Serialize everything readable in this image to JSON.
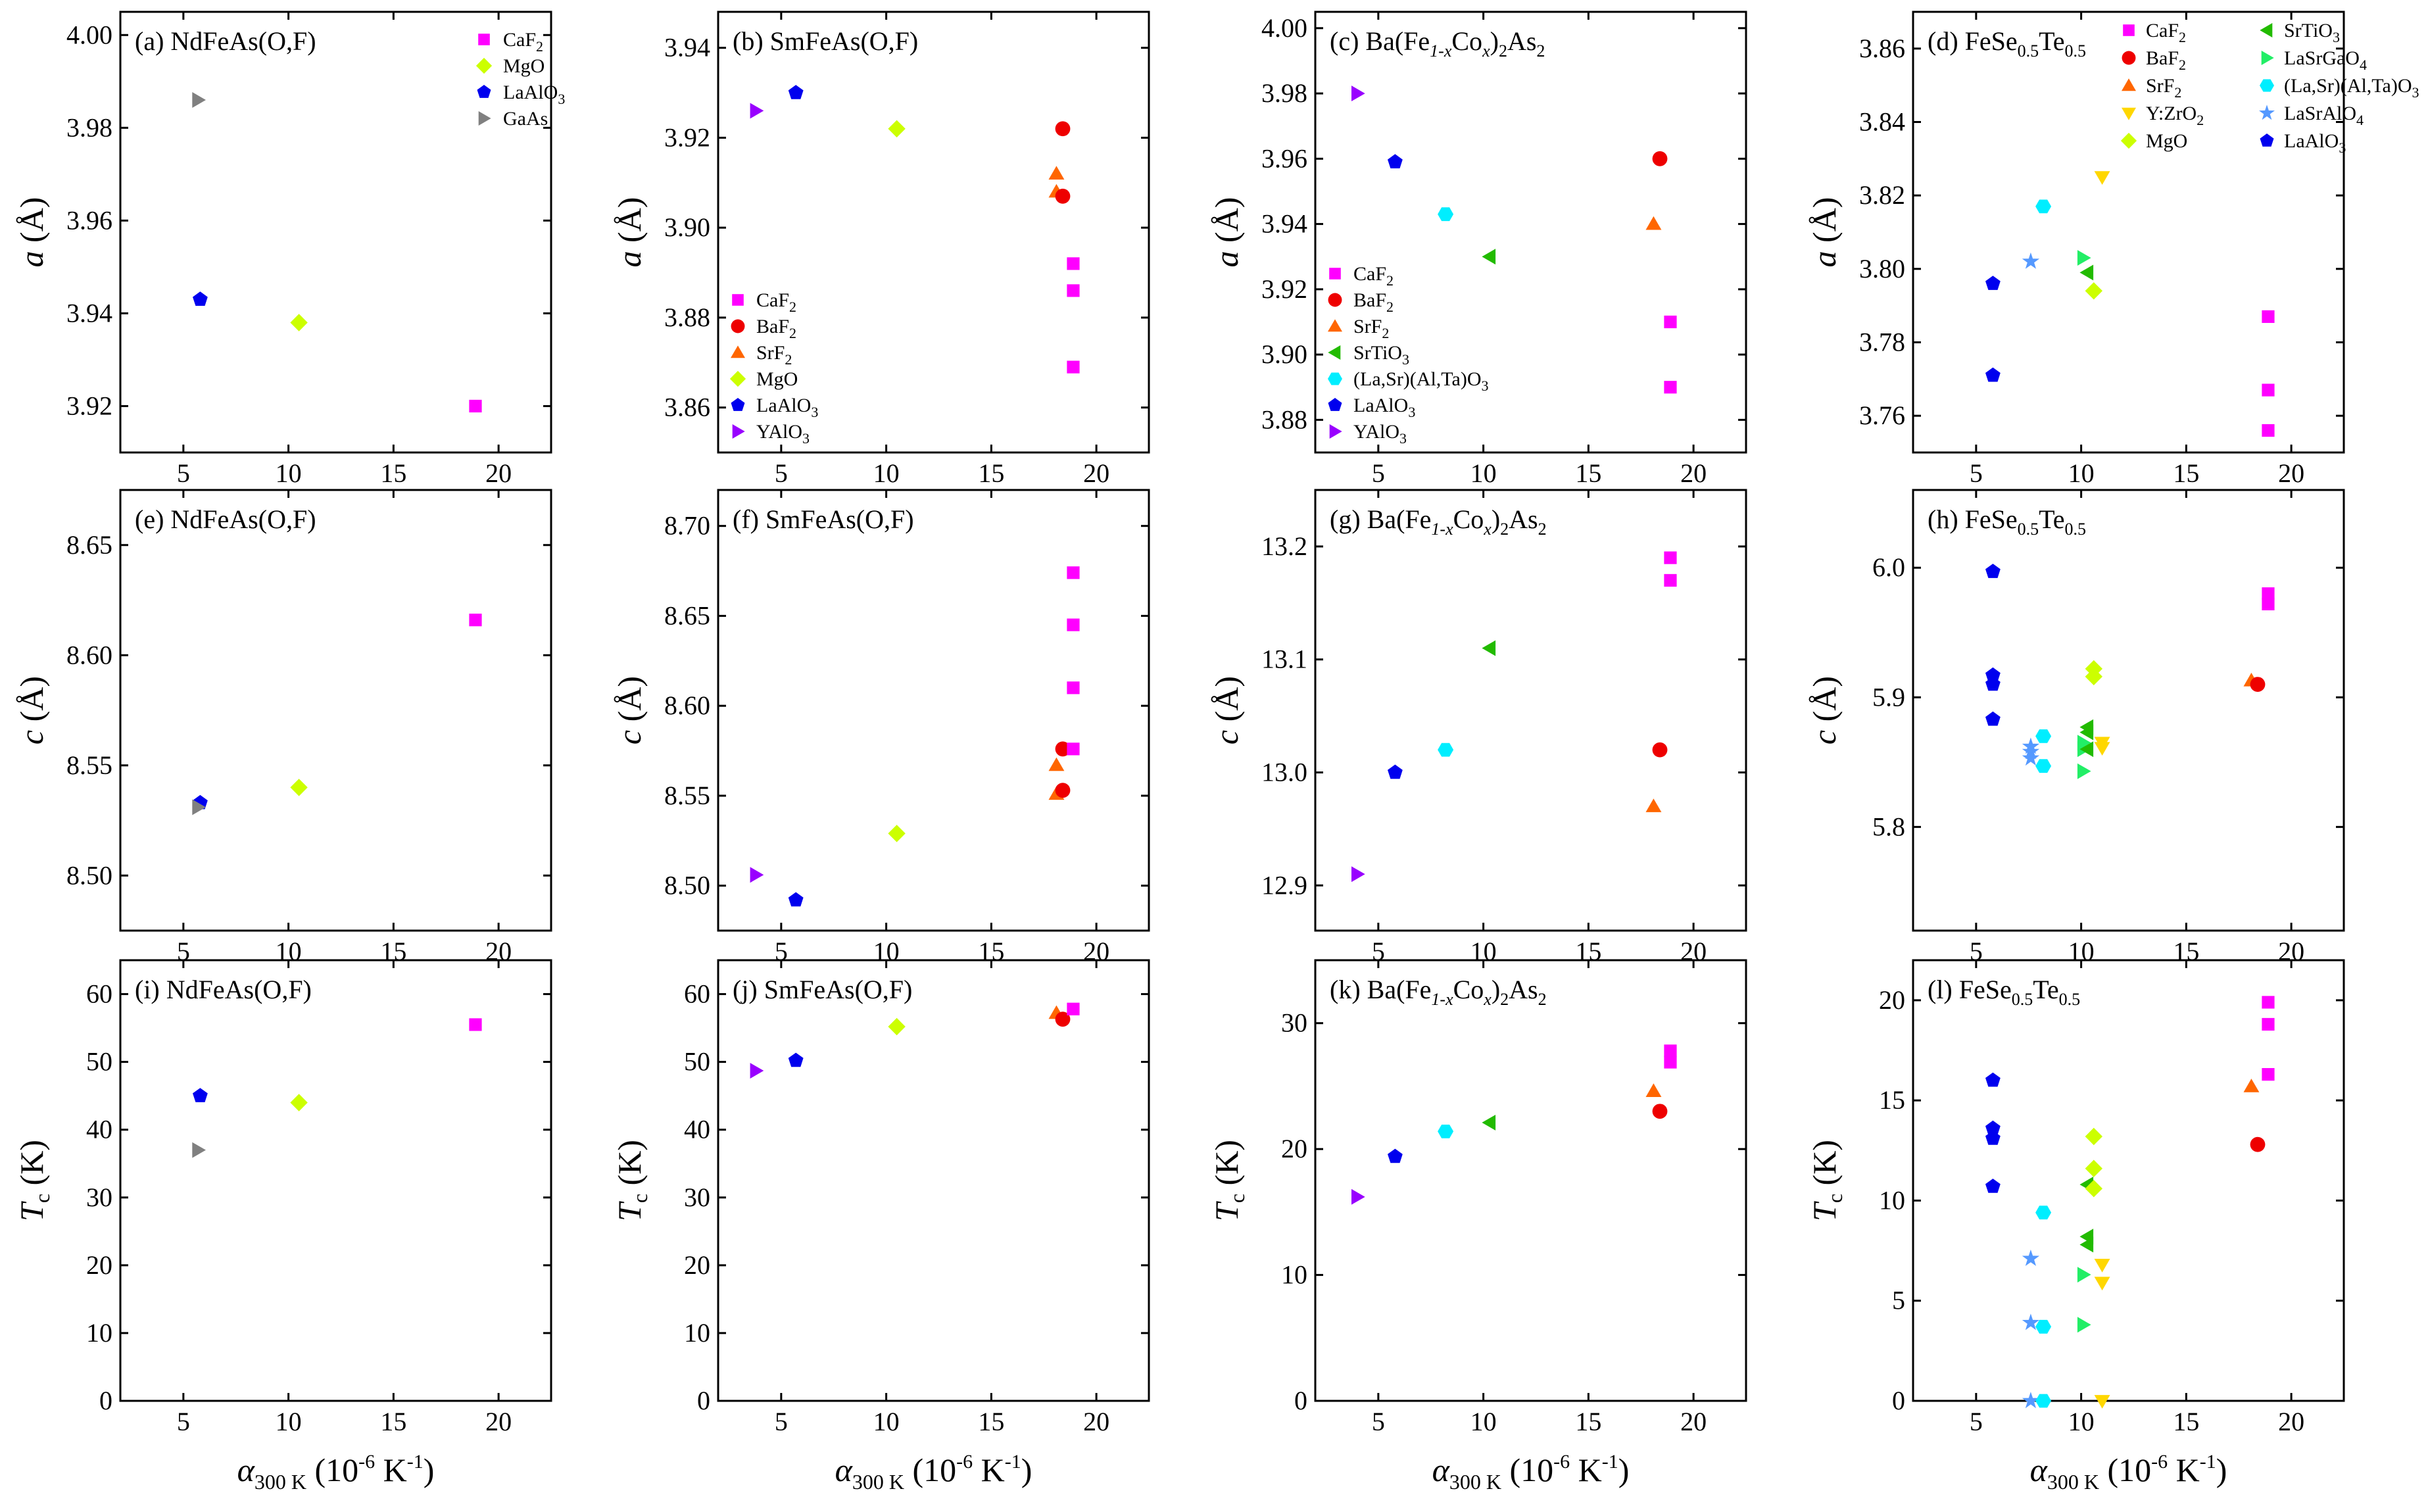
{
  "figure": {
    "xlabel": {
      "symbol": "α",
      "subscript": "300 K",
      "units": " (10",
      "exp": "-6",
      "units2": " K",
      "exp2": "-1",
      "close": ")"
    }
  },
  "colors": {
    "CaF2": "#ff00ff",
    "BaF2": "#ee0000",
    "SrF2": "#ff6600",
    "MgO": "#ccff00",
    "LaAlO3": "#0000ee",
    "GaAs": "#808080",
    "YAlO3": "#9900ff",
    "SrTiO3": "#22bb00",
    "LSAT": "#00eeff",
    "LaSrGaO4": "#22ee66",
    "YZrO2": "#ffd700",
    "LaSrAlO4": "#5599ff"
  },
  "legend_labels": {
    "CaF2": [
      "CaF",
      "2",
      ""
    ],
    "BaF2": [
      "BaF",
      "2",
      ""
    ],
    "SrF2": [
      "SrF",
      "2",
      ""
    ],
    "MgO": [
      "MgO",
      "",
      ""
    ],
    "LaAlO3": [
      "LaAlO",
      "3",
      ""
    ],
    "GaAs": [
      "GaAs",
      "",
      ""
    ],
    "YAlO3": [
      "YAlO",
      "3",
      ""
    ],
    "SrTiO3": [
      "SrTiO",
      "3",
      ""
    ],
    "LSAT": [
      "(La,Sr)(Al,Ta)O",
      "3",
      ""
    ],
    "LaSrGaO4": [
      "LaSrGaO",
      "4",
      ""
    ],
    "YZrO2": [
      "Y:ZrO",
      "2",
      ""
    ],
    "LaSrAlO4": [
      "LaSrAlO",
      "4",
      ""
    ]
  },
  "chart_data": [
    {
      "type": "scatter",
      "panel": "(a)",
      "material": [
        "NdFeAs(O,F)"
      ],
      "ylabel": {
        "sym": "a",
        "sub": "",
        "unit": " (Å)"
      },
      "xlim": [
        2,
        22.5
      ],
      "ylim": [
        3.91,
        4.005
      ],
      "xticks": [
        5,
        10,
        15,
        20
      ],
      "yticks": [
        3.92,
        3.94,
        3.96,
        3.98,
        4.0
      ],
      "ydec": 2,
      "legend": {
        "position": "top-right",
        "entries": [
          "CaF2",
          "MgO",
          "LaAlO3",
          "GaAs"
        ]
      },
      "points": [
        {
          "s": "CaF2",
          "x": 18.9,
          "y": 3.92
        },
        {
          "s": "MgO",
          "x": 10.5,
          "y": 3.938
        },
        {
          "s": "LaAlO3",
          "x": 5.8,
          "y": 3.943
        },
        {
          "s": "GaAs",
          "x": 5.7,
          "y": 3.986
        }
      ]
    },
    {
      "type": "scatter",
      "panel": "(b)",
      "material": [
        "SmFeAs(O,F)"
      ],
      "ylabel": {
        "sym": "a",
        "sub": "",
        "unit": " (Å)"
      },
      "xlim": [
        2,
        22.5
      ],
      "ylim": [
        3.85,
        3.948
      ],
      "xticks": [
        5,
        10,
        15,
        20
      ],
      "yticks": [
        3.86,
        3.88,
        3.9,
        3.92,
        3.94
      ],
      "ydec": 2,
      "legend": {
        "position": "bottom-left",
        "entries": [
          "CaF2",
          "BaF2",
          "SrF2",
          "MgO",
          "LaAlO3",
          "YAlO3"
        ]
      },
      "points": [
        {
          "s": "YAlO3",
          "x": 3.8,
          "y": 3.926
        },
        {
          "s": "LaAlO3",
          "x": 5.7,
          "y": 3.93
        },
        {
          "s": "MgO",
          "x": 10.5,
          "y": 3.922
        },
        {
          "s": "BaF2",
          "x": 18.4,
          "y": 3.922
        },
        {
          "s": "SrF2",
          "x": 18.1,
          "y": 3.912
        },
        {
          "s": "SrF2",
          "x": 18.1,
          "y": 3.908
        },
        {
          "s": "BaF2",
          "x": 18.4,
          "y": 3.907
        },
        {
          "s": "CaF2",
          "x": 18.9,
          "y": 3.892
        },
        {
          "s": "CaF2",
          "x": 18.9,
          "y": 3.886
        },
        {
          "s": "CaF2",
          "x": 18.9,
          "y": 3.869
        }
      ]
    },
    {
      "type": "scatter",
      "panel": "(c)",
      "material": [
        "Ba(Fe",
        "1-x",
        "Co",
        "x",
        ")",
        "2",
        "As",
        "2"
      ],
      "ylabel": {
        "sym": "a",
        "sub": "",
        "unit": " (Å)"
      },
      "xlim": [
        2,
        22.5
      ],
      "ylim": [
        3.87,
        4.005
      ],
      "xticks": [
        5,
        10,
        15,
        20
      ],
      "yticks": [
        3.88,
        3.9,
        3.92,
        3.94,
        3.96,
        3.98,
        4.0
      ],
      "ydec": 2,
      "legend": {
        "position": "bottom-left",
        "entries": [
          "CaF2",
          "BaF2",
          "SrF2",
          "SrTiO3",
          "LSAT",
          "LaAlO3",
          "YAlO3"
        ]
      },
      "points": [
        {
          "s": "YAlO3",
          "x": 4.0,
          "y": 3.98
        },
        {
          "s": "LaAlO3",
          "x": 5.8,
          "y": 3.959
        },
        {
          "s": "LSAT",
          "x": 8.2,
          "y": 3.943
        },
        {
          "s": "SrTiO3",
          "x": 10.3,
          "y": 3.93
        },
        {
          "s": "SrF2",
          "x": 18.1,
          "y": 3.94
        },
        {
          "s": "BaF2",
          "x": 18.4,
          "y": 3.96
        },
        {
          "s": "CaF2",
          "x": 18.9,
          "y": 3.91
        },
        {
          "s": "CaF2",
          "x": 18.9,
          "y": 3.89
        }
      ]
    },
    {
      "type": "scatter",
      "panel": "(d)",
      "material": [
        "FeSe",
        "0.5",
        "Te",
        "0.5"
      ],
      "ylabel": {
        "sym": "a",
        "sub": "",
        "unit": " (Å)"
      },
      "xlim": [
        2,
        22.5
      ],
      "ylim": [
        3.75,
        3.87
      ],
      "xticks": [
        5,
        10,
        15,
        20
      ],
      "yticks": [
        3.76,
        3.78,
        3.8,
        3.82,
        3.84,
        3.86
      ],
      "ydec": 2,
      "legend": {
        "position": "top",
        "entries": [
          "CaF2",
          "SrTiO3",
          "BaF2",
          "LaSrGaO4",
          "SrF2",
          "LSAT",
          "YZrO2",
          "LaSrAlO4",
          "MgO",
          "LaAlO3"
        ]
      },
      "points": [
        {
          "s": "LaAlO3",
          "x": 5.8,
          "y": 3.796
        },
        {
          "s": "LaAlO3",
          "x": 5.8,
          "y": 3.771
        },
        {
          "s": "LaSrAlO4",
          "x": 7.6,
          "y": 3.802
        },
        {
          "s": "LSAT",
          "x": 8.2,
          "y": 3.817
        },
        {
          "s": "LaSrGaO4",
          "x": 10.1,
          "y": 3.803
        },
        {
          "s": "SrTiO3",
          "x": 10.3,
          "y": 3.799
        },
        {
          "s": "MgO",
          "x": 10.6,
          "y": 3.794
        },
        {
          "s": "YZrO2",
          "x": 11.0,
          "y": 3.825
        },
        {
          "s": "CaF2",
          "x": 18.9,
          "y": 3.787
        },
        {
          "s": "CaF2",
          "x": 18.9,
          "y": 3.767
        },
        {
          "s": "CaF2",
          "x": 18.9,
          "y": 3.756
        }
      ]
    },
    {
      "type": "scatter",
      "panel": "(e)",
      "material": [
        "NdFeAs(O,F)"
      ],
      "ylabel": {
        "sym": "c",
        "sub": "",
        "unit": " (Å)"
      },
      "xlim": [
        2,
        22.5
      ],
      "ylim": [
        8.475,
        8.675
      ],
      "xticks": [
        5,
        10,
        15,
        20
      ],
      "yticks": [
        8.5,
        8.55,
        8.6,
        8.65
      ],
      "ydec": 2,
      "legend": null,
      "points": [
        {
          "s": "CaF2",
          "x": 18.9,
          "y": 8.616
        },
        {
          "s": "MgO",
          "x": 10.5,
          "y": 8.54
        },
        {
          "s": "LaAlO3",
          "x": 5.8,
          "y": 8.533
        },
        {
          "s": "GaAs",
          "x": 5.7,
          "y": 8.531
        }
      ]
    },
    {
      "type": "scatter",
      "panel": "(f)",
      "material": [
        "SmFeAs(O,F)"
      ],
      "ylabel": {
        "sym": "c",
        "sub": "",
        "unit": " (Å)"
      },
      "xlim": [
        2,
        22.5
      ],
      "ylim": [
        8.475,
        8.72
      ],
      "xticks": [
        5,
        10,
        15,
        20
      ],
      "yticks": [
        8.5,
        8.55,
        8.6,
        8.65,
        8.7
      ],
      "ydec": 2,
      "legend": null,
      "points": [
        {
          "s": "YAlO3",
          "x": 3.8,
          "y": 8.506
        },
        {
          "s": "LaAlO3",
          "x": 5.7,
          "y": 8.492
        },
        {
          "s": "MgO",
          "x": 10.5,
          "y": 8.529
        },
        {
          "s": "SrF2",
          "x": 18.1,
          "y": 8.567
        },
        {
          "s": "SrF2",
          "x": 18.1,
          "y": 8.551
        },
        {
          "s": "BaF2",
          "x": 18.4,
          "y": 8.576
        },
        {
          "s": "BaF2",
          "x": 18.4,
          "y": 8.553
        },
        {
          "s": "CaF2",
          "x": 18.9,
          "y": 8.674
        },
        {
          "s": "CaF2",
          "x": 18.9,
          "y": 8.645
        },
        {
          "s": "CaF2",
          "x": 18.9,
          "y": 8.61
        },
        {
          "s": "CaF2",
          "x": 18.9,
          "y": 8.576
        }
      ]
    },
    {
      "type": "scatter",
      "panel": "(g)",
      "material": [
        "Ba(Fe",
        "1-x",
        "Co",
        "x",
        ")",
        "2",
        "As",
        "2"
      ],
      "ylabel": {
        "sym": "c",
        "sub": "",
        "unit": " (Å)"
      },
      "xlim": [
        2,
        22.5
      ],
      "ylim": [
        12.86,
        13.25
      ],
      "xticks": [
        5,
        10,
        15,
        20
      ],
      "yticks": [
        12.9,
        13.0,
        13.1,
        13.2
      ],
      "ydec": 1,
      "legend": null,
      "points": [
        {
          "s": "YAlO3",
          "x": 4.0,
          "y": 12.91
        },
        {
          "s": "LaAlO3",
          "x": 5.8,
          "y": 13.0
        },
        {
          "s": "LSAT",
          "x": 8.2,
          "y": 13.02
        },
        {
          "s": "SrTiO3",
          "x": 10.3,
          "y": 13.11
        },
        {
          "s": "SrF2",
          "x": 18.1,
          "y": 12.97
        },
        {
          "s": "BaF2",
          "x": 18.4,
          "y": 13.02
        },
        {
          "s": "CaF2",
          "x": 18.9,
          "y": 13.19
        },
        {
          "s": "CaF2",
          "x": 18.9,
          "y": 13.17
        }
      ]
    },
    {
      "type": "scatter",
      "panel": "(h)",
      "material": [
        "FeSe",
        "0.5",
        "Te",
        "0.5"
      ],
      "ylabel": {
        "sym": "c",
        "sub": "",
        "unit": " (Å)"
      },
      "xlim": [
        2,
        22.5
      ],
      "ylim": [
        5.72,
        6.06
      ],
      "xticks": [
        5,
        10,
        15,
        20
      ],
      "yticks": [
        5.8,
        5.9,
        6.0
      ],
      "ydec": 1,
      "legend": null,
      "points": [
        {
          "s": "LaAlO3",
          "x": 5.8,
          "y": 5.997
        },
        {
          "s": "LaAlO3",
          "x": 5.8,
          "y": 5.917
        },
        {
          "s": "LaAlO3",
          "x": 5.8,
          "y": 5.91
        },
        {
          "s": "LaAlO3",
          "x": 5.8,
          "y": 5.883
        },
        {
          "s": "LaSrAlO4",
          "x": 7.6,
          "y": 5.862
        },
        {
          "s": "LaSrAlO4",
          "x": 7.6,
          "y": 5.858
        },
        {
          "s": "LaSrAlO4",
          "x": 7.6,
          "y": 5.853
        },
        {
          "s": "LSAT",
          "x": 8.2,
          "y": 5.87
        },
        {
          "s": "LSAT",
          "x": 8.2,
          "y": 5.847
        },
        {
          "s": "LaSrGaO4",
          "x": 10.1,
          "y": 5.865
        },
        {
          "s": "LaSrGaO4",
          "x": 10.1,
          "y": 5.86
        },
        {
          "s": "LaSrGaO4",
          "x": 10.1,
          "y": 5.843
        },
        {
          "s": "SrTiO3",
          "x": 10.3,
          "y": 5.877
        },
        {
          "s": "SrTiO3",
          "x": 10.3,
          "y": 5.873
        },
        {
          "s": "SrTiO3",
          "x": 10.3,
          "y": 5.86
        },
        {
          "s": "MgO",
          "x": 10.6,
          "y": 5.922
        },
        {
          "s": "MgO",
          "x": 10.6,
          "y": 5.916
        },
        {
          "s": "YZrO2",
          "x": 11.0,
          "y": 5.865
        },
        {
          "s": "YZrO2",
          "x": 11.0,
          "y": 5.861
        },
        {
          "s": "SrF2",
          "x": 18.1,
          "y": 5.913
        },
        {
          "s": "BaF2",
          "x": 18.4,
          "y": 5.91
        },
        {
          "s": "CaF2",
          "x": 18.9,
          "y": 5.98
        },
        {
          "s": "CaF2",
          "x": 18.9,
          "y": 5.972
        }
      ]
    },
    {
      "type": "scatter",
      "panel": "(i)",
      "material": [
        "NdFeAs(O,F)"
      ],
      "ylabel": {
        "sym": "T",
        "sub": "c",
        "unit": " (K)"
      },
      "xlim": [
        2,
        22.5
      ],
      "ylim": [
        0,
        65
      ],
      "xticks": [
        5,
        10,
        15,
        20
      ],
      "yticks": [
        0,
        10,
        20,
        30,
        40,
        50,
        60
      ],
      "ydec": 0,
      "legend": null,
      "points": [
        {
          "s": "CaF2",
          "x": 18.9,
          "y": 55.5
        },
        {
          "s": "MgO",
          "x": 10.5,
          "y": 44
        },
        {
          "s": "LaAlO3",
          "x": 5.8,
          "y": 45
        },
        {
          "s": "GaAs",
          "x": 5.7,
          "y": 37
        }
      ]
    },
    {
      "type": "scatter",
      "panel": "(j)",
      "material": [
        "SmFeAs(O,F)"
      ],
      "ylabel": {
        "sym": "T",
        "sub": "c",
        "unit": " (K)"
      },
      "xlim": [
        2,
        22.5
      ],
      "ylim": [
        0,
        65
      ],
      "xticks": [
        5,
        10,
        15,
        20
      ],
      "yticks": [
        0,
        10,
        20,
        30,
        40,
        50,
        60
      ],
      "ydec": 0,
      "legend": null,
      "points": [
        {
          "s": "YAlO3",
          "x": 3.8,
          "y": 48.7
        },
        {
          "s": "LaAlO3",
          "x": 5.7,
          "y": 50.2
        },
        {
          "s": "MgO",
          "x": 10.5,
          "y": 55.2
        },
        {
          "s": "SrF2",
          "x": 18.1,
          "y": 57.2
        },
        {
          "s": "BaF2",
          "x": 18.4,
          "y": 56.3
        },
        {
          "s": "CaF2",
          "x": 18.9,
          "y": 57.8
        }
      ]
    },
    {
      "type": "scatter",
      "panel": "(k)",
      "material": [
        "Ba(Fe",
        "1-x",
        "Co",
        "x",
        ")",
        "2",
        "As",
        "2"
      ],
      "ylabel": {
        "sym": "T",
        "sub": "c",
        "unit": " (K)"
      },
      "xlim": [
        2,
        22.5
      ],
      "ylim": [
        0,
        35
      ],
      "xticks": [
        5,
        10,
        15,
        20
      ],
      "yticks": [
        0,
        10,
        20,
        30
      ],
      "ydec": 0,
      "legend": null,
      "points": [
        {
          "s": "YAlO3",
          "x": 4.0,
          "y": 16.2
        },
        {
          "s": "LaAlO3",
          "x": 5.8,
          "y": 19.4
        },
        {
          "s": "LSAT",
          "x": 8.2,
          "y": 21.4
        },
        {
          "s": "SrTiO3",
          "x": 10.3,
          "y": 22.1
        },
        {
          "s": "SrF2",
          "x": 18.1,
          "y": 24.6
        },
        {
          "s": "BaF2",
          "x": 18.4,
          "y": 23.0
        },
        {
          "s": "CaF2",
          "x": 18.9,
          "y": 27.8
        },
        {
          "s": "CaF2",
          "x": 18.9,
          "y": 26.9
        }
      ]
    },
    {
      "type": "scatter",
      "panel": "(l)",
      "material": [
        "FeSe",
        "0.5",
        "Te",
        "0.5"
      ],
      "ylabel": {
        "sym": "T",
        "sub": "c",
        "unit": " (K)"
      },
      "xlim": [
        2,
        22.5
      ],
      "ylim": [
        0,
        22
      ],
      "xticks": [
        5,
        10,
        15,
        20
      ],
      "yticks": [
        0,
        5,
        10,
        15,
        20
      ],
      "ydec": 0,
      "legend": null,
      "points": [
        {
          "s": "LaAlO3",
          "x": 5.8,
          "y": 16.0
        },
        {
          "s": "LaAlO3",
          "x": 5.8,
          "y": 13.6
        },
        {
          "s": "LaAlO3",
          "x": 5.8,
          "y": 13.1
        },
        {
          "s": "LaAlO3",
          "x": 5.8,
          "y": 10.7
        },
        {
          "s": "LaSrAlO4",
          "x": 7.6,
          "y": 7.1
        },
        {
          "s": "LaSrAlO4",
          "x": 7.6,
          "y": 3.9
        },
        {
          "s": "LaSrAlO4",
          "x": 7.6,
          "y": 0.0
        },
        {
          "s": "LSAT",
          "x": 8.2,
          "y": 9.4
        },
        {
          "s": "LSAT",
          "x": 8.2,
          "y": 3.7
        },
        {
          "s": "LSAT",
          "x": 8.2,
          "y": 0.0
        },
        {
          "s": "LaSrGaO4",
          "x": 10.1,
          "y": 6.3
        },
        {
          "s": "LaSrGaO4",
          "x": 10.1,
          "y": 3.8
        },
        {
          "s": "SrTiO3",
          "x": 10.3,
          "y": 10.8
        },
        {
          "s": "SrTiO3",
          "x": 10.3,
          "y": 8.2
        },
        {
          "s": "SrTiO3",
          "x": 10.3,
          "y": 7.8
        },
        {
          "s": "MgO",
          "x": 10.6,
          "y": 13.2
        },
        {
          "s": "MgO",
          "x": 10.6,
          "y": 11.6
        },
        {
          "s": "MgO",
          "x": 10.6,
          "y": 10.6
        },
        {
          "s": "YZrO2",
          "x": 11.0,
          "y": 6.8
        },
        {
          "s": "YZrO2",
          "x": 11.0,
          "y": 5.9
        },
        {
          "s": "YZrO2",
          "x": 11.0,
          "y": 0.0
        },
        {
          "s": "SrF2",
          "x": 18.1,
          "y": 15.7
        },
        {
          "s": "BaF2",
          "x": 18.4,
          "y": 12.8
        },
        {
          "s": "CaF2",
          "x": 18.9,
          "y": 19.9
        },
        {
          "s": "CaF2",
          "x": 18.9,
          "y": 18.8
        },
        {
          "s": "CaF2",
          "x": 18.9,
          "y": 16.3
        }
      ]
    }
  ]
}
